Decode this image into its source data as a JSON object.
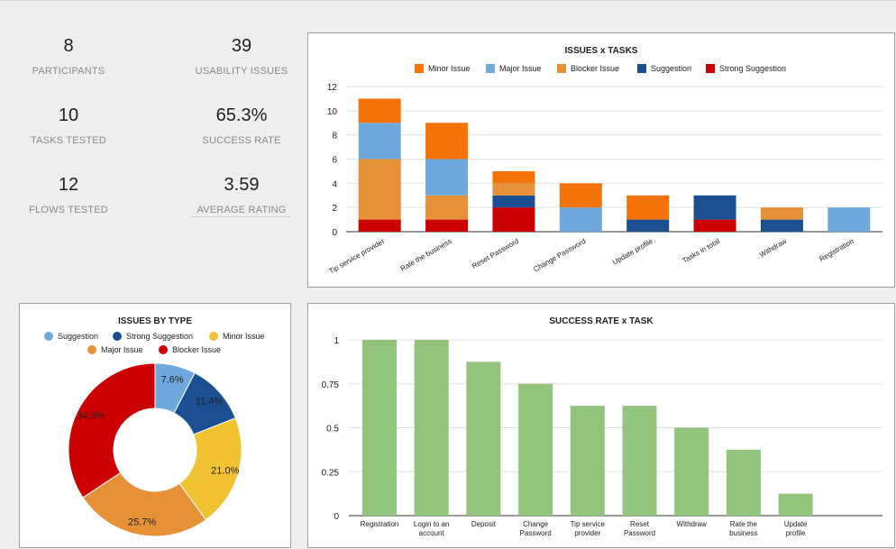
{
  "scorecards": [
    {
      "value": "8",
      "label": "PARTICIPANTS"
    },
    {
      "value": "39",
      "label": "USABILITY ISSUES"
    },
    {
      "value": "10",
      "label": "TASKS TESTED"
    },
    {
      "value": "65.3%",
      "label": "SUCCESS RATE"
    },
    {
      "value": "12",
      "label": "FLOWS TESTED"
    },
    {
      "value": "3.59",
      "label": "AVERAGE RATING"
    }
  ],
  "colors": {
    "minor": "#f5740a",
    "major": "#6fa8dc",
    "blocker_stack": "#e69138",
    "suggestion_stack": "#1c4f91",
    "strong_suggestion_stack": "#cc0000",
    "pie_suggestion": "#6fa8dc",
    "pie_strong_suggestion": "#1c4f91",
    "pie_minor": "#f1c232",
    "pie_major": "#e69138",
    "pie_blocker": "#cc0000",
    "success_bar": "#93c47d"
  },
  "chart_data": [
    {
      "type": "bar",
      "stacked": true,
      "title": "ISSUES x TASKS",
      "categories": [
        "Tip service provider",
        "Rate the business",
        "Reset Password",
        "Change Password",
        "Update profile",
        "Tasks in total",
        "Withdraw",
        "Registration"
      ],
      "series": [
        {
          "name": "Strong Suggestion",
          "values": [
            1,
            1,
            2,
            0,
            0,
            1,
            0,
            0
          ]
        },
        {
          "name": "Suggestion",
          "values": [
            0,
            0,
            1,
            0,
            1,
            2,
            1,
            0
          ]
        },
        {
          "name": "Blocker Issue",
          "values": [
            5,
            2,
            1,
            0,
            0,
            0,
            1,
            0
          ]
        },
        {
          "name": "Major Issue",
          "values": [
            3,
            3,
            0,
            2,
            0,
            0,
            0,
            2
          ]
        },
        {
          "name": "Minor Issue",
          "values": [
            2,
            3,
            1,
            2,
            2,
            0,
            0,
            0
          ]
        }
      ],
      "legend": [
        "Minor Issue",
        "Major Issue",
        "Blocker Issue",
        "Suggestion",
        "Strong Suggestion"
      ],
      "yticks": [
        "0",
        "2",
        "4",
        "6",
        "8",
        "10",
        "12"
      ],
      "ylim": [
        0,
        12
      ],
      "legend_position": "top"
    },
    {
      "type": "pie",
      "donut": true,
      "title": "ISSUES BY TYPE",
      "labels": [
        "Suggestion",
        "Strong Suggestion",
        "Minor Issue",
        "Major Issue",
        "Blocker Issue"
      ],
      "values": [
        7.6,
        11.4,
        21.0,
        25.7,
        34.3
      ],
      "value_labels": [
        "7.6%",
        "11.4%",
        "21.0%",
        "25.7%",
        "34.3%"
      ],
      "legend_position": "top"
    },
    {
      "type": "bar",
      "title": "SUCCESS RATE x TASK",
      "categories": [
        "Registration",
        "Login to an account",
        "Deposit",
        "Change Password",
        "Tip service provider",
        "Reset Password",
        "Withdraw",
        "Rate the business",
        "Update profile"
      ],
      "category_lines": [
        [
          "Registration"
        ],
        [
          "Login to an",
          "account"
        ],
        [
          "Deposit"
        ],
        [
          "Change",
          "Password"
        ],
        [
          "Tip service",
          "provider"
        ],
        [
          "Reset",
          "Password"
        ],
        [
          "Withdraw"
        ],
        [
          "Rate the",
          "business"
        ],
        [
          "Update",
          "profile"
        ]
      ],
      "values": [
        1,
        1,
        0.875,
        0.75,
        0.625,
        0.625,
        0.5,
        0.375,
        0.125
      ],
      "yticks": [
        "0",
        "0.25",
        "0.5",
        "0.75",
        "1"
      ],
      "ylim": [
        0,
        1
      ]
    }
  ]
}
